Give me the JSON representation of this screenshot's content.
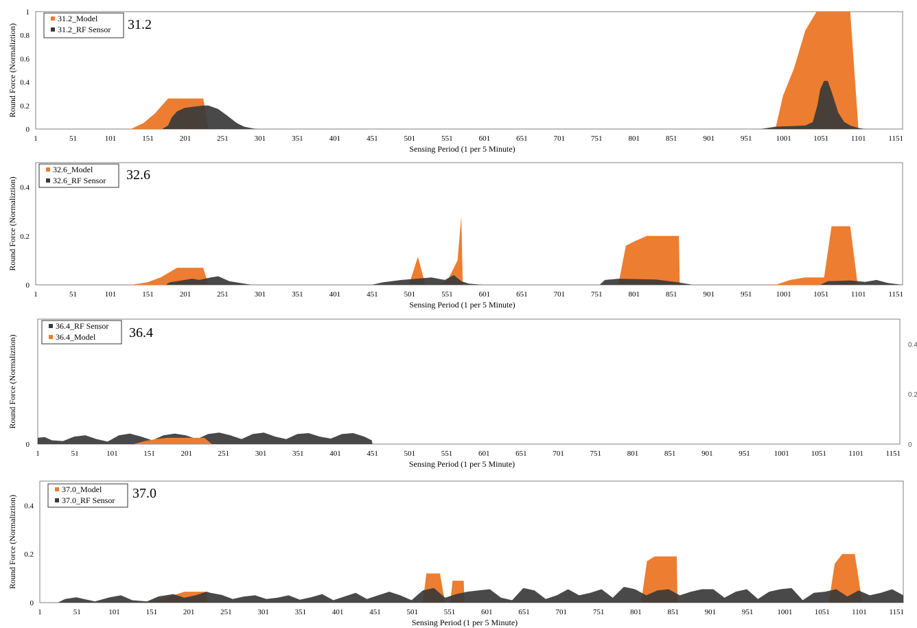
{
  "chart_data": [
    {
      "type": "area",
      "label": "31.2",
      "xlabel": "Sensing Period (1 per 5 Minute)",
      "ylabel": "Round Force (Normaliztion)",
      "xlim": [
        1,
        1160
      ],
      "ylim": [
        0,
        1
      ],
      "xticks": [
        1,
        51,
        101,
        151,
        201,
        251,
        301,
        351,
        401,
        451,
        501,
        551,
        601,
        651,
        701,
        751,
        801,
        851,
        901,
        951,
        1001,
        1051,
        1101,
        1151
      ],
      "yticks": [
        0,
        0.2,
        0.4,
        0.6,
        0.8,
        1
      ],
      "ytick_labels": [
        "0",
        "0.2",
        "0.4",
        "0.6",
        "0.8",
        "1"
      ],
      "ytick_side": "left",
      "grid": false,
      "legend": {
        "position": "top-left",
        "entries": [
          "31.2_Model",
          "31.2_RF Sensor"
        ]
      },
      "series": [
        {
          "name": "31.2_Model",
          "color": "#ED7D31",
          "x": [
            1,
            128,
            145,
            160,
            178,
            225,
            232,
            990,
            1000,
            1015,
            1030,
            1045,
            1062,
            1090,
            1101,
            1160
          ],
          "y": [
            0,
            0,
            0.05,
            0.13,
            0.26,
            0.26,
            0,
            0,
            0.28,
            0.52,
            0.84,
            1.0,
            1.0,
            1.0,
            0,
            0
          ]
        },
        {
          "name": "31.2_RF Sensor",
          "color": "#3A3A3A",
          "x": [
            1,
            170,
            178,
            183,
            190,
            200,
            212,
            225,
            232,
            245,
            258,
            270,
            280,
            292,
            300,
            970,
            990,
            1030,
            1040,
            1046,
            1050,
            1055,
            1060,
            1066,
            1074,
            1082,
            1090,
            1100,
            1110,
            1160
          ],
          "y": [
            0,
            0,
            0.03,
            0.1,
            0.15,
            0.18,
            0.19,
            0.2,
            0.2,
            0.17,
            0.11,
            0.05,
            0.02,
            0.004,
            0,
            0,
            0.02,
            0.03,
            0.06,
            0.2,
            0.34,
            0.41,
            0.41,
            0.3,
            0.14,
            0.06,
            0.03,
            0.01,
            0,
            0
          ]
        }
      ]
    },
    {
      "type": "area",
      "label": "32.6",
      "xlabel": "Sensing Period (1 per 5 Minute)",
      "ylabel": "Round Force (Normaliztion)",
      "xlim": [
        1,
        1160
      ],
      "ylim": [
        0,
        0.5
      ],
      "xticks": [
        1,
        51,
        101,
        151,
        201,
        251,
        301,
        351,
        401,
        451,
        501,
        551,
        601,
        651,
        701,
        751,
        801,
        851,
        901,
        951,
        1001,
        1051,
        1101,
        1151
      ],
      "yticks": [
        0,
        0.2,
        0.4
      ],
      "ytick_labels": [
        "0",
        "0.2",
        "0.4"
      ],
      "ytick_side": "left",
      "grid": false,
      "legend": {
        "position": "top-left",
        "entries": [
          "32.6_Model",
          "32.6_RF Sensor"
        ]
      },
      "series": [
        {
          "name": "32.6_Model",
          "color": "#ED7D31",
          "x": [
            1,
            128,
            150,
            168,
            190,
            225,
            232,
            500,
            512,
            522,
            540,
            552,
            565,
            570,
            572,
            780,
            790,
            803,
            818,
            861,
            862,
            990,
            1010,
            1030,
            1055,
            1065,
            1090,
            1100,
            1160
          ],
          "y": [
            0,
            0,
            0.01,
            0.03,
            0.07,
            0.07,
            0,
            0,
            0.115,
            0,
            0,
            0.02,
            0.1,
            0.28,
            0,
            0,
            0.16,
            0.18,
            0.2,
            0.2,
            0,
            0,
            0.02,
            0.03,
            0.03,
            0.24,
            0.24,
            0,
            0
          ]
        },
        {
          "name": "32.6_RF Sensor",
          "color": "#3A3A3A",
          "x": [
            1,
            175,
            180,
            190,
            200,
            210,
            220,
            235,
            245,
            260,
            290,
            450,
            465,
            490,
            510,
            530,
            548,
            560,
            570,
            580,
            600,
            755,
            762,
            780,
            830,
            860,
            880,
            1050,
            1060,
            1090,
            1110,
            1125,
            1140,
            1160
          ],
          "y": [
            0,
            0,
            0.01,
            0.015,
            0.02,
            0.025,
            0.02,
            0.03,
            0.035,
            0.015,
            0,
            0,
            0.01,
            0.02,
            0.025,
            0.03,
            0.02,
            0.04,
            0.015,
            0.005,
            0,
            0,
            0.02,
            0.025,
            0.022,
            0.01,
            0,
            0,
            0.015,
            0.018,
            0.012,
            0.02,
            0.008,
            0
          ]
        }
      ]
    },
    {
      "type": "area",
      "label": "36.4",
      "xlabel": "Sensing Period (1 per 5 Minute)",
      "ylabel": "Round Force (Normaliztion)",
      "xlim": [
        1,
        1160
      ],
      "ylim": [
        0,
        0.5
      ],
      "xticks": [
        1,
        51,
        101,
        151,
        201,
        251,
        301,
        351,
        401,
        451,
        501,
        551,
        601,
        651,
        701,
        751,
        801,
        851,
        901,
        951,
        1001,
        1051,
        1101,
        1151
      ],
      "yticks": [
        0,
        0.2,
        0.4
      ],
      "ytick_labels": [
        "0",
        "0.2",
        "0.4"
      ],
      "ytick_side": "right",
      "left_axis_label": "0",
      "grid": false,
      "legend": {
        "position": "top-left",
        "entries": [
          "36.4_RF Sensor",
          "36.4_Model"
        ]
      },
      "series": [
        {
          "name": "36.4_RF Sensor",
          "color": "#3A3A3A",
          "x": [
            1,
            10,
            20,
            35,
            50,
            65,
            80,
            95,
            110,
            125,
            140,
            155,
            170,
            185,
            200,
            215,
            230,
            245,
            260,
            275,
            290,
            305,
            320,
            335,
            350,
            365,
            380,
            395,
            410,
            425,
            440,
            450,
            451,
            460,
            1160
          ],
          "y": [
            0.025,
            0.028,
            0.015,
            0.012,
            0.03,
            0.035,
            0.02,
            0.01,
            0.035,
            0.042,
            0.03,
            0.015,
            0.035,
            0.042,
            0.035,
            0.02,
            0.04,
            0.046,
            0.035,
            0.02,
            0.04,
            0.046,
            0.03,
            0.02,
            0.04,
            0.044,
            0.03,
            0.022,
            0.04,
            0.044,
            0.03,
            0.015,
            0,
            0,
            0
          ]
        },
        {
          "name": "36.4_Model",
          "color": "#ED7D31",
          "x": [
            1,
            130,
            145,
            160,
            175,
            225,
            235,
            1160
          ],
          "y": [
            0,
            0,
            0.012,
            0.02,
            0.025,
            0.025,
            0,
            0
          ]
        }
      ]
    },
    {
      "type": "area",
      "label": "37.0",
      "xlabel": "Sensing Period (1 per 5 Minute)",
      "ylabel": "Round Force (Normaliztion)",
      "xlim": [
        1,
        1160
      ],
      "ylim": [
        0,
        0.5
      ],
      "xticks": [
        1,
        51,
        101,
        151,
        201,
        251,
        301,
        351,
        401,
        451,
        501,
        551,
        601,
        651,
        701,
        751,
        801,
        851,
        901,
        951,
        1001,
        1051,
        1101,
        1151
      ],
      "yticks": [
        0,
        0.2,
        0.4
      ],
      "ytick_labels": [
        "0",
        "0.2",
        "0.4"
      ],
      "ytick_side": "left",
      "grid": false,
      "legend": {
        "position": "top-left",
        "entries": [
          "37.0_Model",
          "37.0_RF Sensor"
        ]
      },
      "series": [
        {
          "name": "37.0_Model",
          "color": "#ED7D31",
          "x": [
            1,
            140,
            160,
            180,
            195,
            225,
            226,
            515,
            520,
            538,
            545,
            552,
            555,
            570,
            571,
            808,
            816,
            826,
            856,
            857,
            1060,
            1068,
            1078,
            1095,
            1105,
            1160
          ],
          "y": [
            0,
            0,
            0.01,
            0.03,
            0.045,
            0.045,
            0,
            0,
            0.12,
            0.12,
            0,
            0,
            0.09,
            0.09,
            0,
            0,
            0.17,
            0.19,
            0.19,
            0,
            0,
            0.16,
            0.2,
            0.2,
            0,
            0
          ]
        },
        {
          "name": "37.0_RF Sensor",
          "color": "#3A3A3A",
          "x": [
            1,
            25,
            35,
            50,
            60,
            75,
            95,
            110,
            125,
            145,
            160,
            180,
            195,
            210,
            225,
            230,
            245,
            260,
            275,
            290,
            305,
            320,
            335,
            350,
            365,
            380,
            395,
            410,
            425,
            440,
            455,
            470,
            485,
            500,
            515,
            530,
            545,
            560,
            575,
            590,
            605,
            620,
            635,
            650,
            665,
            680,
            695,
            710,
            725,
            740,
            755,
            770,
            785,
            800,
            815,
            830,
            845,
            860,
            875,
            890,
            905,
            920,
            935,
            950,
            965,
            980,
            995,
            1010,
            1025,
            1040,
            1055,
            1070,
            1085,
            1100,
            1115,
            1130,
            1145,
            1160
          ],
          "y": [
            0,
            0,
            0.015,
            0.022,
            0.015,
            0.005,
            0.022,
            0.03,
            0.01,
            0.005,
            0.025,
            0.035,
            0.02,
            0.03,
            0.045,
            0.04,
            0.032,
            0.015,
            0.025,
            0.03,
            0.015,
            0.02,
            0.03,
            0.012,
            0.022,
            0.035,
            0.01,
            0.025,
            0.04,
            0.015,
            0.03,
            0.045,
            0.03,
            0.01,
            0.05,
            0.06,
            0.02,
            0.035,
            0.045,
            0.05,
            0.055,
            0.02,
            0.01,
            0.06,
            0.05,
            0.015,
            0.03,
            0.055,
            0.03,
            0.04,
            0.055,
            0.02,
            0.065,
            0.055,
            0.03,
            0.05,
            0.055,
            0.03,
            0.045,
            0.055,
            0.055,
            0.02,
            0.045,
            0.055,
            0.015,
            0.045,
            0.055,
            0.06,
            0.01,
            0.04,
            0.045,
            0.055,
            0.025,
            0.05,
            0.03,
            0.04,
            0.055,
            0.03
          ]
        }
      ]
    }
  ]
}
